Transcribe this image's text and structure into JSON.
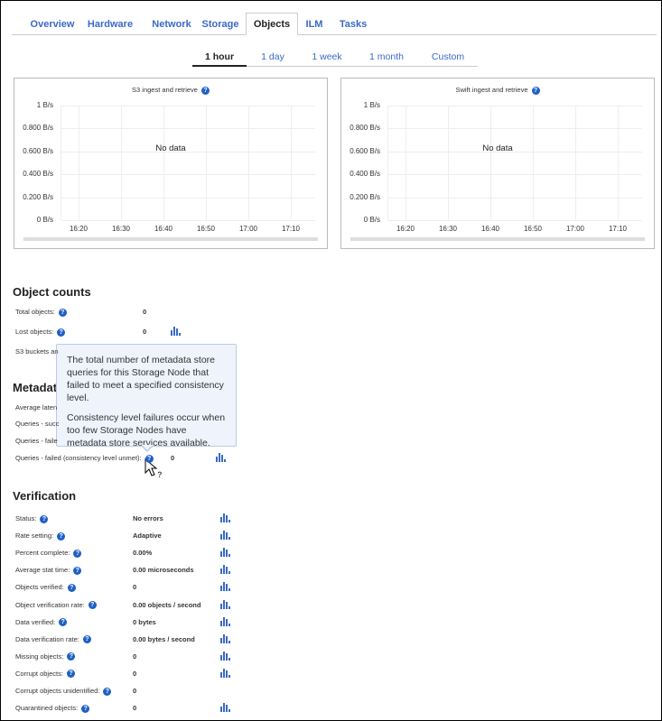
{
  "tabs": [
    {
      "label": "Overview"
    },
    {
      "label": "Hardware"
    },
    {
      "label": "Network"
    },
    {
      "label": "Storage"
    },
    {
      "label": "Objects",
      "active": true
    },
    {
      "label": "ILM"
    },
    {
      "label": "Tasks"
    }
  ],
  "time_tabs": [
    {
      "label": "1 hour",
      "active": true
    },
    {
      "label": "1 day"
    },
    {
      "label": "1 week"
    },
    {
      "label": "1 month"
    },
    {
      "label": "Custom"
    }
  ],
  "charts": [
    {
      "title": "S3 ingest and retrieve",
      "no_data": "No data",
      "y_ticks": [
        "1 B/s",
        "0.800 B/s",
        "0.600 B/s",
        "0.400 B/s",
        "0.200 B/s",
        "0 B/s"
      ],
      "x_ticks": [
        "16:20",
        "16:30",
        "16:40",
        "16:50",
        "17:00",
        "17:10"
      ]
    },
    {
      "title": "Swift ingest and retrieve",
      "no_data": "No data",
      "y_ticks": [
        "1 B/s",
        "0.800 B/s",
        "0.600 B/s",
        "0.400 B/s",
        "0.200 B/s",
        "0 B/s"
      ],
      "x_ticks": [
        "16:20",
        "16:30",
        "16:40",
        "16:50",
        "17:00",
        "17:10"
      ]
    }
  ],
  "object_counts": {
    "heading": "Object counts",
    "rows": [
      {
        "label": "Total objects:",
        "value": "0",
        "chart": false
      },
      {
        "label": "Lost objects:",
        "value": "0",
        "chart": true
      },
      {
        "label": "S3 buckets an",
        "value": "",
        "chart": false
      }
    ]
  },
  "metadata": {
    "heading": "Metadat",
    "rows": [
      {
        "label": "Average laten",
        "value": "",
        "chart": false
      },
      {
        "label": "Queries - succ",
        "value": "",
        "chart": false
      },
      {
        "label": "Queries - faile",
        "value": "",
        "chart": false
      },
      {
        "label": "Queries - failed (consistency level unmet):",
        "value": "0",
        "chart": true
      }
    ]
  },
  "verification": {
    "heading": "Verification",
    "rows": [
      {
        "label": "Status:",
        "value": "No errors",
        "chart": true
      },
      {
        "label": "Rate setting:",
        "value": "Adaptive",
        "chart": true
      },
      {
        "label": "Percent complete:",
        "value": "0.00%",
        "chart": true
      },
      {
        "label": "Average stat time:",
        "value": "0.00 microseconds",
        "chart": true
      },
      {
        "label": "Objects verified:",
        "value": "0",
        "chart": true
      },
      {
        "label": "Object verification rate:",
        "value": "0.00 objects / second",
        "chart": true
      },
      {
        "label": "Data verified:",
        "value": "0 bytes",
        "chart": true
      },
      {
        "label": "Data verification rate:",
        "value": "0.00 bytes / second",
        "chart": true
      },
      {
        "label": "Missing objects:",
        "value": "0",
        "chart": true
      },
      {
        "label": "Corrupt objects:",
        "value": "0",
        "chart": true
      },
      {
        "label": "Corrupt objects unidentified:",
        "value": "0",
        "chart": false
      },
      {
        "label": "Quarantined objects:",
        "value": "0",
        "chart": true
      }
    ]
  },
  "tooltip": {
    "p1": "The total number of metadata store queries for this Storage Node that failed to meet a specified consistency level.",
    "p2": "Consistency level failures occur when too few Storage Nodes have metadata store services available."
  },
  "colors": {
    "accent": "#3a69c8",
    "help_icon": "#1f5fc7",
    "tooltip_bg": "#eef3fc"
  }
}
